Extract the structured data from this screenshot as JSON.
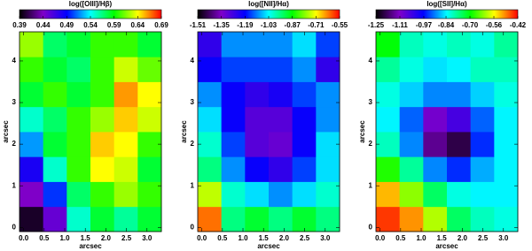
{
  "chart_data": [
    {
      "type": "heatmap",
      "title": "log([OIII]/Hβ)",
      "xlabel": "arcsec",
      "ylabel": "arcsec",
      "colormap": [
        "#000000",
        "#7f00c8",
        "#0000ff",
        "#00ffff",
        "#00ff00",
        "#ffff00",
        "#ff0000"
      ],
      "clim": [
        0.39,
        0.69
      ],
      "cticks": [
        0.39,
        0.44,
        0.49,
        0.54,
        0.59,
        0.64,
        0.69
      ],
      "xlim": [
        -0.1,
        3.35
      ],
      "ylim": [
        -0.1,
        4.7
      ],
      "xticks": [
        {
          "value": 0,
          "label": "0.0"
        },
        0.5,
        {
          "value": 1,
          "label": "1.0"
        },
        1.5,
        {
          "value": 2,
          "label": "2.0"
        },
        2.5,
        {
          "value": 3,
          "label": "3.0"
        }
      ],
      "yticks": [
        0,
        1,
        2,
        3,
        4
      ],
      "xbins": [
        -0.1,
        0.475,
        1.05,
        1.625,
        2.2,
        2.775,
        3.35
      ],
      "ybins": [
        -0.1,
        0.5,
        1.1,
        1.7,
        2.3,
        2.9,
        3.5,
        4.1,
        4.7
      ],
      "z": [
        [
          0.4,
          0.45,
          0.55,
          0.58,
          0.56,
          0.58
        ],
        [
          0.44,
          0.5,
          0.57,
          0.6,
          0.62,
          0.6
        ],
        [
          0.48,
          0.55,
          0.6,
          0.64,
          0.63,
          0.58
        ],
        [
          0.52,
          0.58,
          0.6,
          0.65,
          0.64,
          0.6
        ],
        [
          0.55,
          0.57,
          0.6,
          0.62,
          0.65,
          0.63
        ],
        [
          0.58,
          0.6,
          0.58,
          0.6,
          0.66,
          0.64
        ],
        [
          0.6,
          0.58,
          0.57,
          0.6,
          0.63,
          0.61
        ],
        [
          0.62,
          0.57,
          0.58,
          0.6,
          0.6,
          0.58
        ]
      ]
    },
    {
      "type": "heatmap",
      "title": "log([NII]/Hα)",
      "xlabel": "arcsec",
      "ylabel": "arcsec",
      "colormap": [
        "#000000",
        "#7f00c8",
        "#0000ff",
        "#00ffff",
        "#00ff00",
        "#ffff00",
        "#ff0000"
      ],
      "clim": [
        -1.51,
        -0.55
      ],
      "cticks": [
        -1.51,
        -1.35,
        -1.19,
        -1.03,
        -0.87,
        -0.71,
        -0.55
      ],
      "xlim": [
        -0.1,
        3.35
      ],
      "ylim": [
        -0.1,
        4.7
      ],
      "xticks": [
        {
          "value": 0,
          "label": "0.0"
        },
        0.5,
        {
          "value": 1,
          "label": "1.0"
        },
        1.5,
        {
          "value": 2,
          "label": "2.0"
        },
        2.5,
        {
          "value": 3,
          "label": "3.0"
        }
      ],
      "yticks": [
        0,
        1,
        2,
        3,
        4
      ],
      "xbins": [
        -0.1,
        0.475,
        1.05,
        1.625,
        2.2,
        2.775,
        3.35
      ],
      "ybins": [
        -0.1,
        0.5,
        1.1,
        1.7,
        2.3,
        2.9,
        3.5,
        4.1,
        4.7
      ],
      "z": [
        [
          -0.62,
          -0.95,
          -0.9,
          -0.95,
          -0.9,
          -0.95
        ],
        [
          -0.75,
          -1.0,
          -1.05,
          -1.1,
          -1.05,
          -1.0
        ],
        [
          -0.95,
          -1.1,
          -1.2,
          -1.25,
          -1.15,
          -1.05
        ],
        [
          -1.0,
          -1.15,
          -1.3,
          -1.32,
          -1.2,
          -1.05
        ],
        [
          -1.05,
          -1.2,
          -1.3,
          -1.3,
          -1.2,
          -1.1
        ],
        [
          -1.1,
          -1.2,
          -1.25,
          -1.22,
          -1.15,
          -1.1
        ],
        [
          -1.2,
          -1.15,
          -1.15,
          -1.15,
          -1.1,
          -1.25
        ],
        [
          -1.25,
          -1.1,
          -1.1,
          -1.1,
          -1.05,
          -1.15
        ]
      ]
    },
    {
      "type": "heatmap",
      "title": "log([SII]/Hα)",
      "xlabel": "arcsec",
      "ylabel": "arcsec",
      "colormap": [
        "#000000",
        "#7f00c8",
        "#0000ff",
        "#00ffff",
        "#00ff00",
        "#ffff00",
        "#ff0000"
      ],
      "clim": [
        -1.25,
        -0.42
      ],
      "cticks": [
        -1.25,
        -1.11,
        -0.97,
        -0.84,
        {
          "value": -0.7,
          "label": "-0.70"
        },
        -0.56,
        -0.42
      ],
      "xlim": [
        -0.1,
        3.35
      ],
      "ylim": [
        -0.1,
        4.7
      ],
      "xticks": [
        {
          "value": 0,
          "label": "0.0"
        },
        0.5,
        {
          "value": 1,
          "label": "1.0"
        },
        1.5,
        {
          "value": 2,
          "label": "2.0"
        },
        2.5,
        {
          "value": 3,
          "label": "3.0"
        }
      ],
      "yticks": [
        0,
        1,
        2,
        3,
        4
      ],
      "xbins": [
        -0.1,
        0.475,
        1.05,
        1.625,
        2.2,
        2.775,
        3.35
      ],
      "ybins": [
        -0.1,
        0.5,
        1.1,
        1.7,
        2.3,
        2.9,
        3.5,
        4.1,
        4.7
      ],
      "z": [
        [
          -0.45,
          -0.5,
          -0.6,
          -0.75,
          -0.8,
          -0.82
        ],
        [
          -0.52,
          -0.62,
          -0.75,
          -0.82,
          -0.84,
          -0.84
        ],
        [
          -0.68,
          -0.78,
          -0.9,
          -0.95,
          -0.88,
          -0.84
        ],
        [
          -0.8,
          -0.9,
          -1.15,
          -1.2,
          -0.95,
          -0.84
        ],
        [
          -0.84,
          -0.92,
          -1.1,
          -1.05,
          -0.92,
          -0.84
        ],
        [
          -0.82,
          -0.86,
          -0.9,
          -0.9,
          -0.86,
          -0.82
        ],
        [
          -0.78,
          -0.82,
          -0.85,
          -0.84,
          -0.8,
          -0.8
        ],
        [
          -0.7,
          -0.8,
          -0.82,
          -0.8,
          -0.82,
          -0.78
        ]
      ]
    }
  ]
}
